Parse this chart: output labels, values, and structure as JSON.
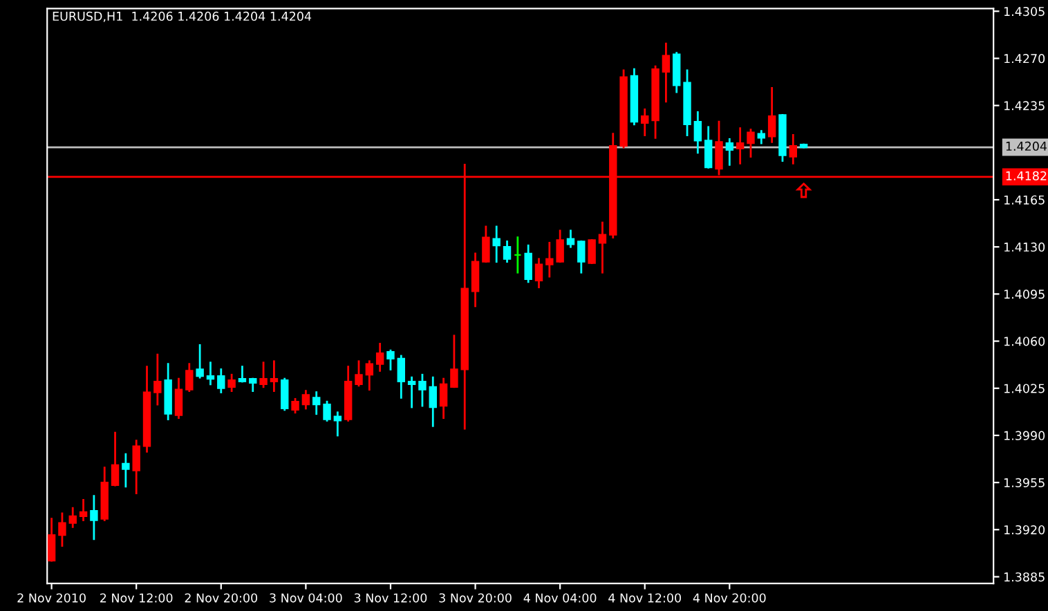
{
  "chart_data": {
    "type": "candlestick",
    "title": "EURUSD,H1  1.4206 1.4206 1.4204 1.4204",
    "x": [
      "2010-11-02T04:00",
      "2010-11-02T05:00",
      "2010-11-02T06:00",
      "2010-11-02T07:00",
      "2010-11-02T08:00",
      "2010-11-02T09:00",
      "2010-11-02T10:00",
      "2010-11-02T11:00",
      "2010-11-02T12:00",
      "2010-11-02T13:00",
      "2010-11-02T14:00",
      "2010-11-02T15:00",
      "2010-11-02T16:00",
      "2010-11-02T17:00",
      "2010-11-02T18:00",
      "2010-11-02T19:00",
      "2010-11-02T20:00",
      "2010-11-02T21:00",
      "2010-11-02T22:00",
      "2010-11-02T23:00",
      "2010-11-03T00:00",
      "2010-11-03T01:00",
      "2010-11-03T02:00",
      "2010-11-03T03:00",
      "2010-11-03T04:00",
      "2010-11-03T05:00",
      "2010-11-03T06:00",
      "2010-11-03T07:00",
      "2010-11-03T08:00",
      "2010-11-03T09:00",
      "2010-11-03T10:00",
      "2010-11-03T11:00",
      "2010-11-03T12:00",
      "2010-11-03T13:00",
      "2010-11-03T14:00",
      "2010-11-03T15:00",
      "2010-11-03T16:00",
      "2010-11-03T17:00",
      "2010-11-03T18:00",
      "2010-11-03T19:00",
      "2010-11-03T20:00",
      "2010-11-03T21:00",
      "2010-11-03T22:00",
      "2010-11-03T23:00",
      "2010-11-04T00:00",
      "2010-11-04T01:00",
      "2010-11-04T02:00",
      "2010-11-04T03:00",
      "2010-11-04T04:00",
      "2010-11-04T05:00",
      "2010-11-04T06:00",
      "2010-11-04T07:00",
      "2010-11-04T08:00",
      "2010-11-04T09:00",
      "2010-11-04T10:00",
      "2010-11-04T11:00",
      "2010-11-04T12:00",
      "2010-11-04T13:00",
      "2010-11-04T14:00",
      "2010-11-04T15:00",
      "2010-11-04T16:00",
      "2010-11-04T17:00",
      "2010-11-04T18:00",
      "2010-11-04T19:00",
      "2010-11-04T20:00",
      "2010-11-04T21:00",
      "2010-11-04T22:00",
      "2010-11-04T23:00",
      "2010-11-05T00:00",
      "2010-11-05T01:00",
      "2010-11-05T02:00",
      "2010-11-05T03:00"
    ],
    "xlim": [
      "2010-11-02T03:35",
      "2010-11-05T20:55"
    ],
    "xticks": [
      {
        "value": "2010-11-02T04:00",
        "label": "2 Nov 2010"
      },
      {
        "value": "2010-11-02T12:00",
        "label": "2 Nov 12:00"
      },
      {
        "value": "2010-11-02T20:00",
        "label": "2 Nov 20:00"
      },
      {
        "value": "2010-11-03T04:00",
        "label": "3 Nov 04:00"
      },
      {
        "value": "2010-11-03T12:00",
        "label": "3 Nov 12:00"
      },
      {
        "value": "2010-11-03T20:00",
        "label": "3 Nov 20:00"
      },
      {
        "value": "2010-11-04T04:00",
        "label": "4 Nov 04:00"
      },
      {
        "value": "2010-11-04T12:00",
        "label": "4 Nov 12:00"
      },
      {
        "value": "2010-11-04T20:00",
        "label": "4 Nov 20:00"
      }
    ],
    "ohlc": [
      [
        1.3897,
        1.3928,
        1.3897,
        1.3916
      ],
      [
        1.3916,
        1.3932,
        1.3908,
        1.3925
      ],
      [
        1.3925,
        1.3936,
        1.3922,
        1.393
      ],
      [
        1.393,
        1.3942,
        1.3927,
        1.3933
      ],
      [
        1.3934,
        1.3945,
        1.3913,
        1.3927
      ],
      [
        1.3928,
        1.3966,
        1.3927,
        1.3955
      ],
      [
        1.3953,
        1.3992,
        1.3953,
        1.3968
      ],
      [
        1.3969,
        1.3976,
        1.3952,
        1.3965
      ],
      [
        1.3964,
        1.3986,
        1.3947,
        1.3982
      ],
      [
        1.3982,
        1.4041,
        1.3978,
        1.4022
      ],
      [
        1.4022,
        1.405,
        1.4013,
        1.403
      ],
      [
        1.4031,
        1.4043,
        1.4002,
        1.4006
      ],
      [
        1.4005,
        1.4032,
        1.4003,
        1.4024
      ],
      [
        1.4024,
        1.4043,
        1.4023,
        1.4038
      ],
      [
        1.4039,
        1.4057,
        1.4033,
        1.4034
      ],
      [
        1.4034,
        1.4044,
        1.4028,
        1.4032
      ],
      [
        1.4034,
        1.4039,
        1.4022,
        1.4025
      ],
      [
        1.4026,
        1.4035,
        1.4023,
        1.4031
      ],
      [
        1.4032,
        1.4041,
        1.403,
        1.403
      ],
      [
        1.4032,
        1.4032,
        1.4023,
        1.4029
      ],
      [
        1.4028,
        1.4044,
        1.4026,
        1.4032
      ],
      [
        1.403,
        1.4045,
        1.4023,
        1.4032
      ],
      [
        1.4031,
        1.4032,
        1.4009,
        1.401
      ],
      [
        1.4009,
        1.4017,
        1.4007,
        1.4015
      ],
      [
        1.4013,
        1.4023,
        1.401,
        1.402
      ],
      [
        1.4018,
        1.4022,
        1.4006,
        1.4013
      ],
      [
        1.4013,
        1.4015,
        1.4001,
        1.4002
      ],
      [
        1.4004,
        1.4007,
        1.399,
        1.4001
      ],
      [
        1.4002,
        1.4041,
        1.4001,
        1.403
      ],
      [
        1.4028,
        1.4045,
        1.4027,
        1.4035
      ],
      [
        1.4035,
        1.4045,
        1.4024,
        1.4043
      ],
      [
        1.4043,
        1.4058,
        1.4038,
        1.4051
      ],
      [
        1.4052,
        1.4053,
        1.4039,
        1.4047
      ],
      [
        1.4047,
        1.4049,
        1.4018,
        1.403
      ],
      [
        1.403,
        1.4033,
        1.4011,
        1.4028
      ],
      [
        1.403,
        1.4035,
        1.4012,
        1.4024
      ],
      [
        1.4026,
        1.4033,
        1.3997,
        1.4011
      ],
      [
        1.4012,
        1.4032,
        1.4003,
        1.4028
      ],
      [
        1.4026,
        1.4064,
        1.4026,
        1.4039
      ],
      [
        1.4039,
        1.4191,
        1.3995,
        1.4099
      ],
      [
        1.4097,
        1.4125,
        1.4086,
        1.4119
      ],
      [
        1.4119,
        1.4145,
        1.4119,
        1.4137
      ],
      [
        1.4136,
        1.4145,
        1.4119,
        1.4131
      ],
      [
        1.413,
        1.4134,
        1.4119,
        1.4121
      ],
      [
        1.4124,
        1.4137,
        1.4111,
        1.4124
      ],
      [
        1.4125,
        1.4131,
        1.4104,
        1.4106
      ],
      [
        1.4105,
        1.4121,
        1.41,
        1.4117
      ],
      [
        1.4117,
        1.4133,
        1.4108,
        1.4121
      ],
      [
        1.4119,
        1.4142,
        1.4119,
        1.4135
      ],
      [
        1.4136,
        1.4142,
        1.413,
        1.4132
      ],
      [
        1.4134,
        1.4134,
        1.4111,
        1.4119
      ],
      [
        1.4118,
        1.4135,
        1.4118,
        1.4135
      ],
      [
        1.4133,
        1.4148,
        1.4111,
        1.4139
      ],
      [
        1.4139,
        1.4214,
        1.4137,
        1.4205
      ],
      [
        1.4205,
        1.4261,
        1.4204,
        1.4256
      ],
      [
        1.4257,
        1.4262,
        1.4221,
        1.4223
      ],
      [
        1.4222,
        1.4232,
        1.4213,
        1.4227
      ],
      [
        1.4224,
        1.4264,
        1.4211,
        1.4262
      ],
      [
        1.426,
        1.4281,
        1.4238,
        1.4272
      ],
      [
        1.4273,
        1.4274,
        1.4245,
        1.425
      ],
      [
        1.4252,
        1.4261,
        1.4213,
        1.4221
      ],
      [
        1.4223,
        1.423,
        1.42,
        1.4209
      ],
      [
        1.4209,
        1.4219,
        1.4189,
        1.4189
      ],
      [
        1.4188,
        1.4223,
        1.4184,
        1.4208
      ],
      [
        1.4207,
        1.421,
        1.4191,
        1.4202
      ],
      [
        1.4203,
        1.4218,
        1.4192,
        1.4207
      ],
      [
        1.4207,
        1.4217,
        1.4197,
        1.4215
      ],
      [
        1.4214,
        1.4216,
        1.4207,
        1.4211
      ],
      [
        1.4212,
        1.4248,
        1.4208,
        1.4227
      ],
      [
        1.4228,
        1.4228,
        1.4194,
        1.4198
      ],
      [
        1.4197,
        1.4213,
        1.4192,
        1.4205
      ],
      [
        1.4206,
        1.4206,
        1.4204,
        1.4204
      ]
    ],
    "colors": [
      "#ff0000",
      "#ff0000",
      "#ff0000",
      "#ff0000",
      "#00ffff",
      "#ff0000",
      "#ff0000",
      "#00ffff",
      "#ff0000",
      "#ff0000",
      "#ff0000",
      "#00ffff",
      "#ff0000",
      "#ff0000",
      "#00ffff",
      "#00ffff",
      "#00ffff",
      "#ff0000",
      "#00ffff",
      "#00ffff",
      "#ff0000",
      "#ff0000",
      "#00ffff",
      "#ff0000",
      "#ff0000",
      "#00ffff",
      "#00ffff",
      "#00ffff",
      "#ff0000",
      "#ff0000",
      "#ff0000",
      "#ff0000",
      "#00ffff",
      "#00ffff",
      "#00ffff",
      "#00ffff",
      "#00ffff",
      "#ff0000",
      "#ff0000",
      "#ff0000",
      "#ff0000",
      "#ff0000",
      "#00ffff",
      "#00ffff",
      "#00ff00",
      "#00ffff",
      "#ff0000",
      "#ff0000",
      "#ff0000",
      "#00ffff",
      "#00ffff",
      "#ff0000",
      "#ff0000",
      "#ff0000",
      "#ff0000",
      "#00ffff",
      "#ff0000",
      "#ff0000",
      "#ff0000",
      "#00ffff",
      "#00ffff",
      "#00ffff",
      "#00ffff",
      "#ff0000",
      "#00ffff",
      "#ff0000",
      "#ff0000",
      "#00ffff",
      "#ff0000",
      "#00ffff",
      "#ff0000",
      "#00ffff"
    ],
    "ylim": [
      1.388,
      1.4307
    ],
    "yticks": [
      {
        "value": 1.3885,
        "label": "1.3885"
      },
      {
        "value": 1.392,
        "label": "1.3920"
      },
      {
        "value": 1.3955,
        "label": "1.3955"
      },
      {
        "value": 1.399,
        "label": "1.3990"
      },
      {
        "value": 1.4025,
        "label": "1.4025"
      },
      {
        "value": 1.406,
        "label": "1.4060"
      },
      {
        "value": 1.4095,
        "label": "1.4095"
      },
      {
        "value": 1.413,
        "label": "1.4130"
      },
      {
        "value": 1.4165,
        "label": "1.4165"
      },
      {
        "value": 1.4235,
        "label": "1.4235"
      },
      {
        "value": 1.427,
        "label": "1.4270"
      },
      {
        "value": 1.4305,
        "label": "1.4305"
      }
    ],
    "ref_lines": [
      {
        "axis": "y",
        "value": 1.4204,
        "label": "1.4204",
        "color": "#c0c0c0"
      },
      {
        "axis": "y",
        "value": 1.4182,
        "label": "1.4182",
        "color": "#ff0000"
      }
    ],
    "grid": false,
    "legend": false
  }
}
